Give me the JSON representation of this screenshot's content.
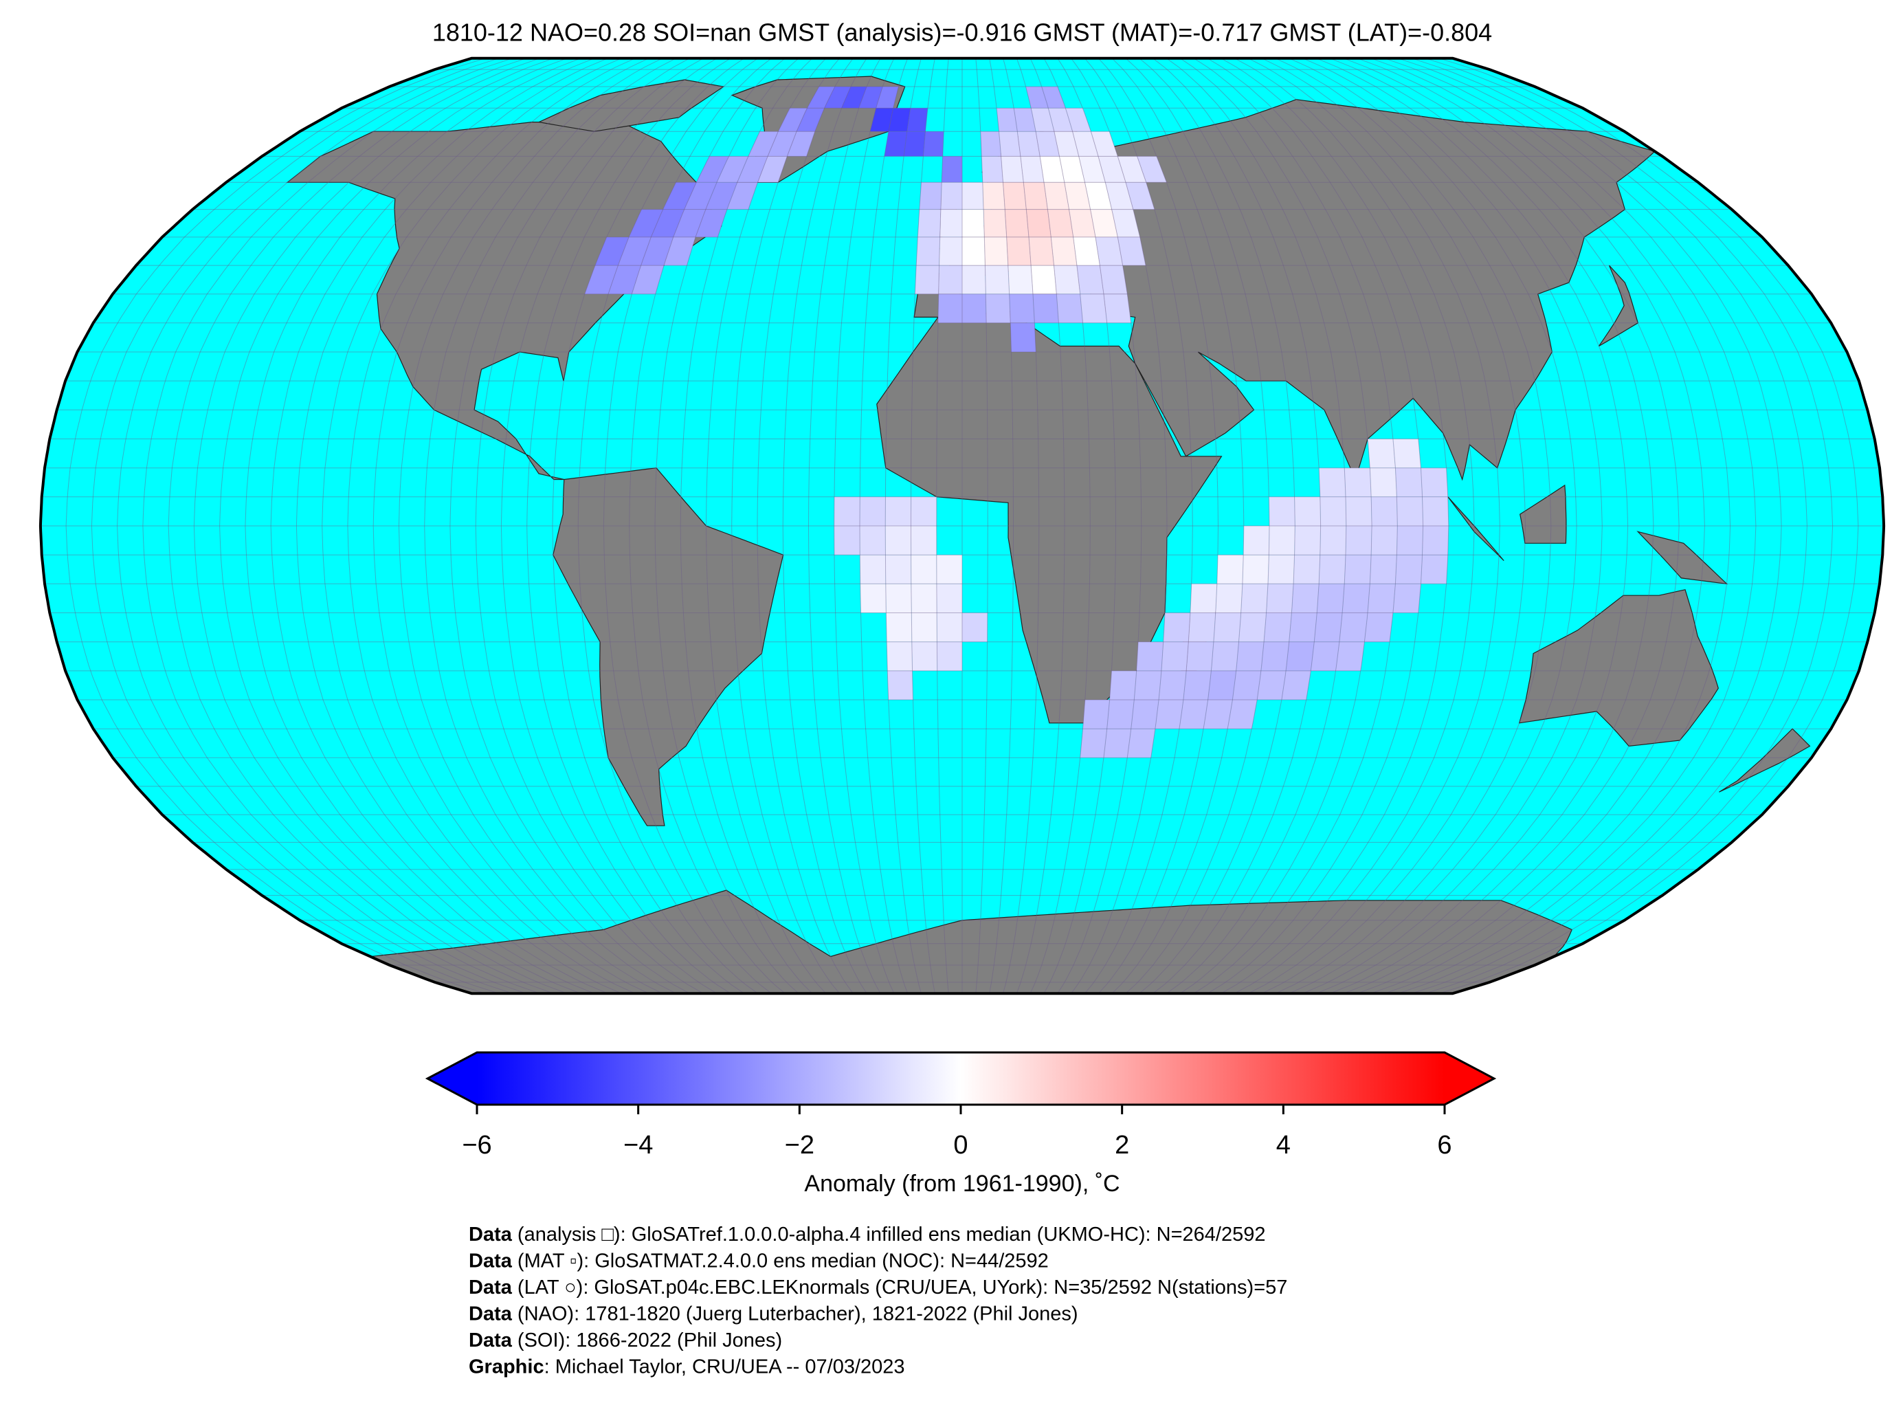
{
  "header": {
    "title": "1810-12 NAO=0.28 SOI=nan GMST (analysis)=-0.916 GMST (MAT)=-0.717 GMST (LAT)=-0.804"
  },
  "map": {
    "projection": "robinson",
    "ocean_color": "#00ffff",
    "land_color": "#808080",
    "cells": [
      [
        -45,
        75,
        -3
      ],
      [
        -40,
        75,
        -3.5
      ],
      [
        -35,
        75,
        -4
      ],
      [
        -30,
        75,
        -3.5
      ],
      [
        -25,
        75,
        -3
      ],
      [
        20,
        75,
        -2
      ],
      [
        25,
        75,
        -2
      ],
      [
        -50,
        70,
        -2.5
      ],
      [
        -45,
        70,
        -3
      ],
      [
        -25,
        70,
        -4.5
      ],
      [
        -20,
        70,
        -4.5
      ],
      [
        -15,
        70,
        -4
      ],
      [
        10,
        70,
        -1.5
      ],
      [
        15,
        70,
        -1.5
      ],
      [
        20,
        70,
        -1
      ],
      [
        25,
        70,
        -1
      ],
      [
        30,
        70,
        -1
      ],
      [
        -55,
        65,
        -2
      ],
      [
        -50,
        65,
        -2
      ],
      [
        -45,
        65,
        -2
      ],
      [
        -20,
        65,
        -4
      ],
      [
        -15,
        65,
        -4
      ],
      [
        -10,
        65,
        -3.5
      ],
      [
        5,
        65,
        -1.5
      ],
      [
        10,
        65,
        -1
      ],
      [
        15,
        65,
        -1
      ],
      [
        20,
        65,
        -1
      ],
      [
        25,
        65,
        -0.5
      ],
      [
        30,
        65,
        -0.5
      ],
      [
        35,
        65,
        -0.5
      ],
      [
        -65,
        60,
        -2.5
      ],
      [
        -60,
        60,
        -2
      ],
      [
        -55,
        60,
        -2
      ],
      [
        -50,
        60,
        -1.5
      ],
      [
        -5,
        60,
        -3
      ],
      [
        5,
        60,
        -1
      ],
      [
        10,
        60,
        -0.5
      ],
      [
        15,
        60,
        -0.5
      ],
      [
        20,
        60,
        0
      ],
      [
        25,
        60,
        0
      ],
      [
        30,
        60,
        -0.3
      ],
      [
        35,
        60,
        -0.5
      ],
      [
        40,
        60,
        -0.5
      ],
      [
        45,
        60,
        -1
      ],
      [
        -70,
        55,
        -3
      ],
      [
        -65,
        55,
        -2.5
      ],
      [
        -60,
        55,
        -2.5
      ],
      [
        -55,
        55,
        -2
      ],
      [
        -10,
        55,
        -1.5
      ],
      [
        -5,
        55,
        -1
      ],
      [
        0,
        55,
        -0.5
      ],
      [
        5,
        55,
        0.5
      ],
      [
        10,
        55,
        0.8
      ],
      [
        15,
        55,
        0.8
      ],
      [
        20,
        55,
        0.5
      ],
      [
        25,
        55,
        0.3
      ],
      [
        30,
        55,
        0
      ],
      [
        35,
        55,
        -0.5
      ],
      [
        40,
        55,
        -1
      ],
      [
        -75,
        50,
        -3
      ],
      [
        -70,
        50,
        -3
      ],
      [
        -65,
        50,
        -2.5
      ],
      [
        -60,
        50,
        -2.5
      ],
      [
        -10,
        50,
        -1
      ],
      [
        -5,
        50,
        -0.5
      ],
      [
        0,
        50,
        0
      ],
      [
        5,
        50,
        0.6
      ],
      [
        10,
        50,
        0.9
      ],
      [
        15,
        50,
        1
      ],
      [
        20,
        50,
        0.8
      ],
      [
        25,
        50,
        0.5
      ],
      [
        30,
        50,
        0.2
      ],
      [
        35,
        50,
        -0.5
      ],
      [
        -80,
        45,
        -3
      ],
      [
        -75,
        45,
        -2.5
      ],
      [
        -70,
        45,
        -2.5
      ],
      [
        -65,
        45,
        -2
      ],
      [
        -10,
        45,
        -1
      ],
      [
        -5,
        45,
        -0.5
      ],
      [
        0,
        45,
        0
      ],
      [
        5,
        45,
        0.3
      ],
      [
        10,
        45,
        0.8
      ],
      [
        15,
        45,
        0.7
      ],
      [
        20,
        45,
        0.4
      ],
      [
        25,
        45,
        0
      ],
      [
        30,
        45,
        -0.8
      ],
      [
        35,
        45,
        -1
      ],
      [
        -80,
        40,
        -2.5
      ],
      [
        -75,
        40,
        -2.5
      ],
      [
        -70,
        40,
        -2
      ],
      [
        -10,
        40,
        -1
      ],
      [
        -5,
        40,
        -1
      ],
      [
        0,
        40,
        -0.5
      ],
      [
        5,
        40,
        -0.5
      ],
      [
        10,
        40,
        -0.3
      ],
      [
        15,
        40,
        0
      ],
      [
        20,
        40,
        -0.5
      ],
      [
        25,
        40,
        -1
      ],
      [
        30,
        40,
        -1
      ],
      [
        -5,
        35,
        -2
      ],
      [
        0,
        35,
        -2
      ],
      [
        5,
        35,
        -1.5
      ],
      [
        10,
        35,
        -2
      ],
      [
        15,
        35,
        -2
      ],
      [
        20,
        35,
        -1.5
      ],
      [
        25,
        35,
        -1
      ],
      [
        30,
        35,
        -1
      ],
      [
        10,
        30,
        -2.5
      ],
      [
        80,
        10,
        -0.5
      ],
      [
        85,
        10,
        -0.5
      ],
      [
        70,
        5,
        -0.8
      ],
      [
        75,
        5,
        -0.8
      ],
      [
        80,
        5,
        -0.5
      ],
      [
        85,
        5,
        -1
      ],
      [
        90,
        5,
        -1
      ],
      [
        60,
        0,
        -0.8
      ],
      [
        65,
        0,
        -0.7
      ],
      [
        70,
        0,
        -0.8
      ],
      [
        75,
        0,
        -0.8
      ],
      [
        80,
        0,
        -1
      ],
      [
        85,
        0,
        -1
      ],
      [
        90,
        0,
        -1
      ],
      [
        55,
        -5,
        -0.5
      ],
      [
        60,
        -5,
        -0.5
      ],
      [
        65,
        -5,
        -0.7
      ],
      [
        70,
        -5,
        -0.8
      ],
      [
        75,
        -5,
        -1
      ],
      [
        80,
        -5,
        -1
      ],
      [
        85,
        -5,
        -1.2
      ],
      [
        90,
        -5,
        -1.2
      ],
      [
        50,
        -10,
        -0.3
      ],
      [
        55,
        -10,
        -0.3
      ],
      [
        60,
        -10,
        -0.5
      ],
      [
        65,
        -10,
        -0.8
      ],
      [
        70,
        -10,
        -1
      ],
      [
        75,
        -10,
        -1.2
      ],
      [
        80,
        -10,
        -1.2
      ],
      [
        85,
        -10,
        -1.3
      ],
      [
        90,
        -10,
        -1.3
      ],
      [
        45,
        -15,
        -0.5
      ],
      [
        50,
        -15,
        -0.5
      ],
      [
        55,
        -15,
        -0.8
      ],
      [
        60,
        -15,
        -1
      ],
      [
        65,
        -15,
        -1.3
      ],
      [
        70,
        -15,
        -1.5
      ],
      [
        75,
        -15,
        -1.5
      ],
      [
        80,
        -15,
        -1.4
      ],
      [
        85,
        -15,
        -1.4
      ],
      [
        40,
        -20,
        -1.2
      ],
      [
        45,
        -20,
        -1
      ],
      [
        50,
        -20,
        -1
      ],
      [
        55,
        -20,
        -1
      ],
      [
        60,
        -20,
        -1.3
      ],
      [
        65,
        -20,
        -1.5
      ],
      [
        70,
        -20,
        -1.6
      ],
      [
        75,
        -20,
        -1.5
      ],
      [
        80,
        -20,
        -1.5
      ],
      [
        35,
        -25,
        -1.5
      ],
      [
        40,
        -25,
        -1.3
      ],
      [
        45,
        -25,
        -1.3
      ],
      [
        50,
        -25,
        -1.3
      ],
      [
        55,
        -25,
        -1.5
      ],
      [
        60,
        -25,
        -1.6
      ],
      [
        65,
        -25,
        -1.8
      ],
      [
        70,
        -25,
        -1.6
      ],
      [
        75,
        -25,
        -1.5
      ],
      [
        30,
        -30,
        -1.5
      ],
      [
        35,
        -30,
        -1.5
      ],
      [
        40,
        -30,
        -1.5
      ],
      [
        45,
        -30,
        -1.6
      ],
      [
        50,
        -30,
        -1.8
      ],
      [
        55,
        -30,
        -1.6
      ],
      [
        60,
        -30,
        -1.5
      ],
      [
        65,
        -30,
        -1.5
      ],
      [
        25,
        -35,
        -1.6
      ],
      [
        30,
        -35,
        -1.6
      ],
      [
        35,
        -35,
        -1.6
      ],
      [
        40,
        -35,
        -1.5
      ],
      [
        45,
        -35,
        -1.5
      ],
      [
        50,
        -35,
        -1.5
      ],
      [
        55,
        -35,
        -1.5
      ],
      [
        25,
        -40,
        -1.5
      ],
      [
        30,
        -40,
        -1.5
      ],
      [
        35,
        -40,
        -1.5
      ],
      [
        -25,
        0,
        -1
      ],
      [
        -20,
        0,
        -1
      ],
      [
        -15,
        0,
        -0.8
      ],
      [
        -10,
        0,
        -0.8
      ],
      [
        -25,
        -5,
        -1
      ],
      [
        -20,
        -5,
        -0.8
      ],
      [
        -15,
        -5,
        -0.5
      ],
      [
        -10,
        -5,
        -0.5
      ],
      [
        -20,
        -10,
        -0.5
      ],
      [
        -15,
        -10,
        -0.5
      ],
      [
        -10,
        -10,
        -0.3
      ],
      [
        -5,
        -10,
        -0.3
      ],
      [
        -20,
        -15,
        -0.3
      ],
      [
        -15,
        -15,
        -0.3
      ],
      [
        -10,
        -15,
        -0.3
      ],
      [
        -5,
        -15,
        -0.5
      ],
      [
        -15,
        -20,
        -0.3
      ],
      [
        -10,
        -20,
        -0.3
      ],
      [
        -5,
        -20,
        -0.5
      ],
      [
        0,
        -20,
        -1
      ],
      [
        -15,
        -25,
        -0.5
      ],
      [
        -10,
        -25,
        -0.6
      ],
      [
        -5,
        -25,
        -0.8
      ],
      [
        -15,
        -30,
        -1
      ]
    ]
  },
  "colorbar": {
    "colormap": [
      "#0000ff",
      "#ffffff",
      "#ff0000"
    ],
    "xlim": [
      -6,
      6
    ],
    "xticks": [
      {
        "value": -6,
        "label": "−6"
      },
      {
        "value": -4,
        "label": "−4"
      },
      {
        "value": -2,
        "label": "−2"
      },
      0,
      2,
      4,
      6
    ],
    "label": "Anomaly (from 1961-1990), ˚C"
  },
  "footer": [
    {
      "bold": "Data",
      "text": " (analysis □): GloSATref.1.0.0.0-alpha.4 infilled ens median (UKMO-HC): N=264/2592"
    },
    {
      "bold": "Data",
      "text": " (MAT ▫): GloSATMAT.2.4.0.0 ens median (NOC): N=44/2592"
    },
    {
      "bold": "Data",
      "text": " (LAT ○): GloSAT.p04c.EBC.LEKnormals (CRU/UEA, UYork): N=35/2592 N(stations)=57"
    },
    {
      "bold": "Data",
      "text": " (NAO): 1781-1820 (Juerg Luterbacher), 1821-2022 (Phil Jones)"
    },
    {
      "bold": "Data",
      "text": " (SOI): 1866-2022 (Phil Jones)"
    },
    {
      "bold": "Graphic",
      "text": ": Michael Taylor, CRU/UEA -- 07/03/2023"
    }
  ]
}
